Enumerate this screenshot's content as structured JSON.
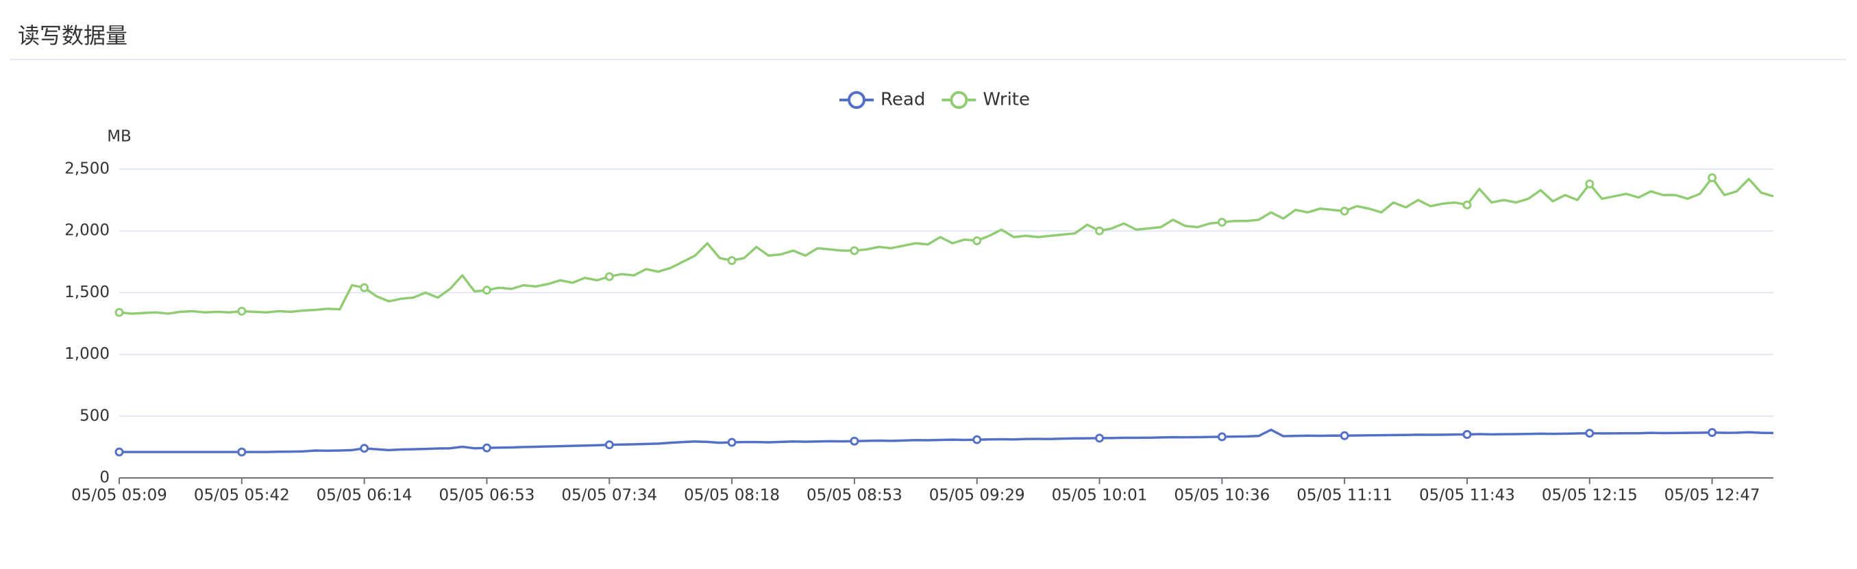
{
  "header": {
    "title": "读写数据量"
  },
  "chart_data": {
    "type": "line",
    "y_axis_label": "MB",
    "categories": [
      "05/05 05:09",
      null,
      null,
      null,
      null,
      null,
      null,
      null,
      null,
      null,
      "05/05 05:42",
      null,
      null,
      null,
      null,
      null,
      null,
      null,
      null,
      null,
      "05/05 06:14",
      null,
      null,
      null,
      null,
      null,
      null,
      null,
      null,
      null,
      "05/05 06:53",
      null,
      null,
      null,
      null,
      null,
      null,
      null,
      null,
      null,
      "05/05 07:34",
      null,
      null,
      null,
      null,
      null,
      null,
      null,
      null,
      null,
      "05/05 08:18",
      null,
      null,
      null,
      null,
      null,
      null,
      null,
      null,
      null,
      "05/05 08:53",
      null,
      null,
      null,
      null,
      null,
      null,
      null,
      null,
      null,
      "05/05 09:29",
      null,
      null,
      null,
      null,
      null,
      null,
      null,
      null,
      null,
      "05/05 10:01",
      null,
      null,
      null,
      null,
      null,
      null,
      null,
      null,
      null,
      "05/05 10:36",
      null,
      null,
      null,
      null,
      null,
      null,
      null,
      null,
      null,
      "05/05 11:11",
      null,
      null,
      null,
      null,
      null,
      null,
      null,
      null,
      null,
      "05/05 11:43",
      null,
      null,
      null,
      null,
      null,
      null,
      null,
      null,
      null,
      "05/05 12:15",
      null,
      null,
      null,
      null,
      null,
      null,
      null,
      null,
      null,
      "05/05 12:47",
      null,
      null,
      null,
      null,
      null
    ],
    "series": [
      {
        "name": "Read",
        "color": "#5470c6",
        "values": [
          210,
          210,
          210,
          210,
          210,
          210,
          210,
          210,
          210,
          210,
          210,
          210,
          210,
          212,
          213,
          215,
          222,
          220,
          222,
          225,
          240,
          232,
          225,
          230,
          232,
          235,
          238,
          240,
          252,
          240,
          243,
          245,
          247,
          250,
          252,
          255,
          257,
          260,
          262,
          265,
          268,
          270,
          272,
          275,
          278,
          285,
          290,
          295,
          292,
          285,
          288,
          290,
          290,
          288,
          292,
          295,
          293,
          295,
          297,
          296,
          298,
          300,
          302,
          300,
          303,
          306,
          305,
          308,
          310,
          308,
          310,
          312,
          313,
          312,
          315,
          316,
          315,
          318,
          320,
          321,
          322,
          323,
          325,
          325,
          326,
          328,
          330,
          329,
          330,
          332,
          333,
          335,
          336,
          340,
          390,
          338,
          340,
          342,
          341,
          343,
          342,
          344,
          345,
          346,
          347,
          348,
          350,
          349,
          350,
          351,
          352,
          355,
          353,
          354,
          355,
          356,
          358,
          357,
          358,
          360,
          362,
          360,
          361,
          362,
          362,
          365,
          363,
          364,
          365,
          366,
          368,
          365,
          366,
          370,
          365,
          364
        ]
      },
      {
        "name": "Write",
        "color": "#91cc75",
        "values": [
          1340,
          1330,
          1335,
          1340,
          1330,
          1345,
          1350,
          1340,
          1345,
          1340,
          1350,
          1345,
          1340,
          1350,
          1345,
          1355,
          1360,
          1370,
          1365,
          1560,
          1540,
          1470,
          1430,
          1450,
          1460,
          1500,
          1460,
          1530,
          1640,
          1510,
          1520,
          1540,
          1530,
          1560,
          1550,
          1570,
          1600,
          1580,
          1620,
          1600,
          1630,
          1650,
          1640,
          1690,
          1670,
          1700,
          1750,
          1800,
          1900,
          1780,
          1760,
          1780,
          1870,
          1800,
          1810,
          1840,
          1800,
          1860,
          1850,
          1840,
          1840,
          1850,
          1870,
          1860,
          1880,
          1900,
          1890,
          1950,
          1900,
          1930,
          1920,
          1960,
          2010,
          1950,
          1960,
          1950,
          1960,
          1970,
          1980,
          2050,
          2000,
          2020,
          2060,
          2010,
          2020,
          2030,
          2090,
          2040,
          2030,
          2060,
          2070,
          2080,
          2080,
          2090,
          2150,
          2100,
          2170,
          2150,
          2180,
          2170,
          2160,
          2200,
          2180,
          2150,
          2230,
          2190,
          2250,
          2200,
          2220,
          2230,
          2210,
          2340,
          2230,
          2250,
          2230,
          2260,
          2330,
          2240,
          2290,
          2250,
          2380,
          2260,
          2280,
          2300,
          2270,
          2320,
          2290,
          2290,
          2260,
          2300,
          2430,
          2290,
          2320,
          2420,
          2310,
          2280
        ]
      }
    ],
    "ylim": [
      0,
      2500
    ],
    "yticks": [
      0,
      500,
      {
        "value": 1000,
        "label": "1,000"
      },
      {
        "value": 1500,
        "label": "1,500"
      },
      {
        "value": 2000,
        "label": "2,000"
      },
      {
        "value": 2500,
        "label": "2,500"
      }
    ],
    "grid": true,
    "legend": "top"
  }
}
